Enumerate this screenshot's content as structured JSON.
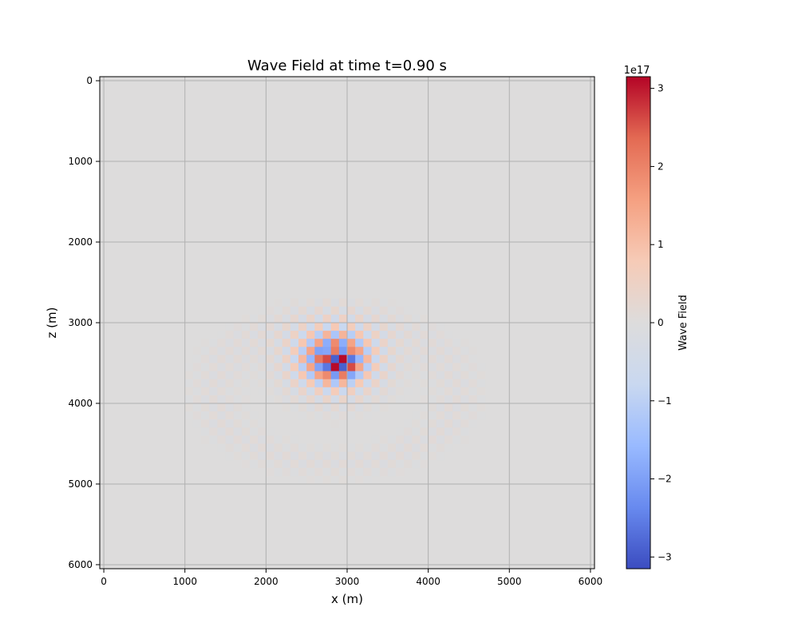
{
  "chart_data": {
    "type": "heatmap",
    "title": "Wave Field at time t=0.90 s",
    "xlabel": "x (m)",
    "ylabel": "z (m)",
    "xlim": [
      -50,
      6050
    ],
    "ylim": [
      6050,
      -50
    ],
    "y_inverted": true,
    "grid": true,
    "xticks": [
      0,
      1000,
      2000,
      3000,
      4000,
      5000,
      6000
    ],
    "yticks": [
      0,
      1000,
      2000,
      3000,
      4000,
      5000,
      6000
    ],
    "xtick_labels": [
      "0",
      "1000",
      "2000",
      "3000",
      "4000",
      "5000",
      "6000"
    ],
    "ytick_labels": [
      "0",
      "1000",
      "2000",
      "3000",
      "4000",
      "5000",
      "6000"
    ],
    "colormap": "coolwarm",
    "background_value": 0,
    "cell_size_m": 100,
    "source_center_m": [
      2850,
      3450
    ],
    "peak_amplitude": 3.1e+17,
    "colorbar": {
      "label": "Wave Field",
      "multiplier": "1e17",
      "range": [
        -3.15,
        3.15
      ],
      "ticks": [
        -3,
        -2,
        -1,
        0,
        1,
        2,
        3
      ],
      "tick_labels": [
        "−3",
        "−2",
        "−1",
        "0",
        "1",
        "2",
        "3"
      ],
      "colors": [
        "#3b4cc0",
        "#688aef",
        "#99baff",
        "#c9d8f0",
        "#dddcdc",
        "#f6cbb7",
        "#f5a081",
        "#e36a53",
        "#b40426"
      ]
    },
    "hot_cells": [
      {
        "x": 2700,
        "z": 3300,
        "v": -1.9
      },
      {
        "x": 2800,
        "z": 3300,
        "v": 2.1
      },
      {
        "x": 2900,
        "z": 3300,
        "v": -2.1
      },
      {
        "x": 3000,
        "z": 3300,
        "v": 1.9
      },
      {
        "x": 2700,
        "z": 3400,
        "v": 2.6
      },
      {
        "x": 2800,
        "z": 3400,
        "v": -2.9
      },
      {
        "x": 2900,
        "z": 3400,
        "v": 3.1
      },
      {
        "x": 3000,
        "z": 3400,
        "v": -2.6
      },
      {
        "x": 2700,
        "z": 3500,
        "v": -2.6
      },
      {
        "x": 2800,
        "z": 3500,
        "v": 3.1
      },
      {
        "x": 2900,
        "z": 3500,
        "v": -2.9
      },
      {
        "x": 3000,
        "z": 3500,
        "v": 2.6
      },
      {
        "x": 2700,
        "z": 3600,
        "v": 1.9
      },
      {
        "x": 2800,
        "z": 3600,
        "v": -2.1
      },
      {
        "x": 2900,
        "z": 3600,
        "v": 2.1
      },
      {
        "x": 3000,
        "z": 3600,
        "v": -1.9
      }
    ]
  }
}
